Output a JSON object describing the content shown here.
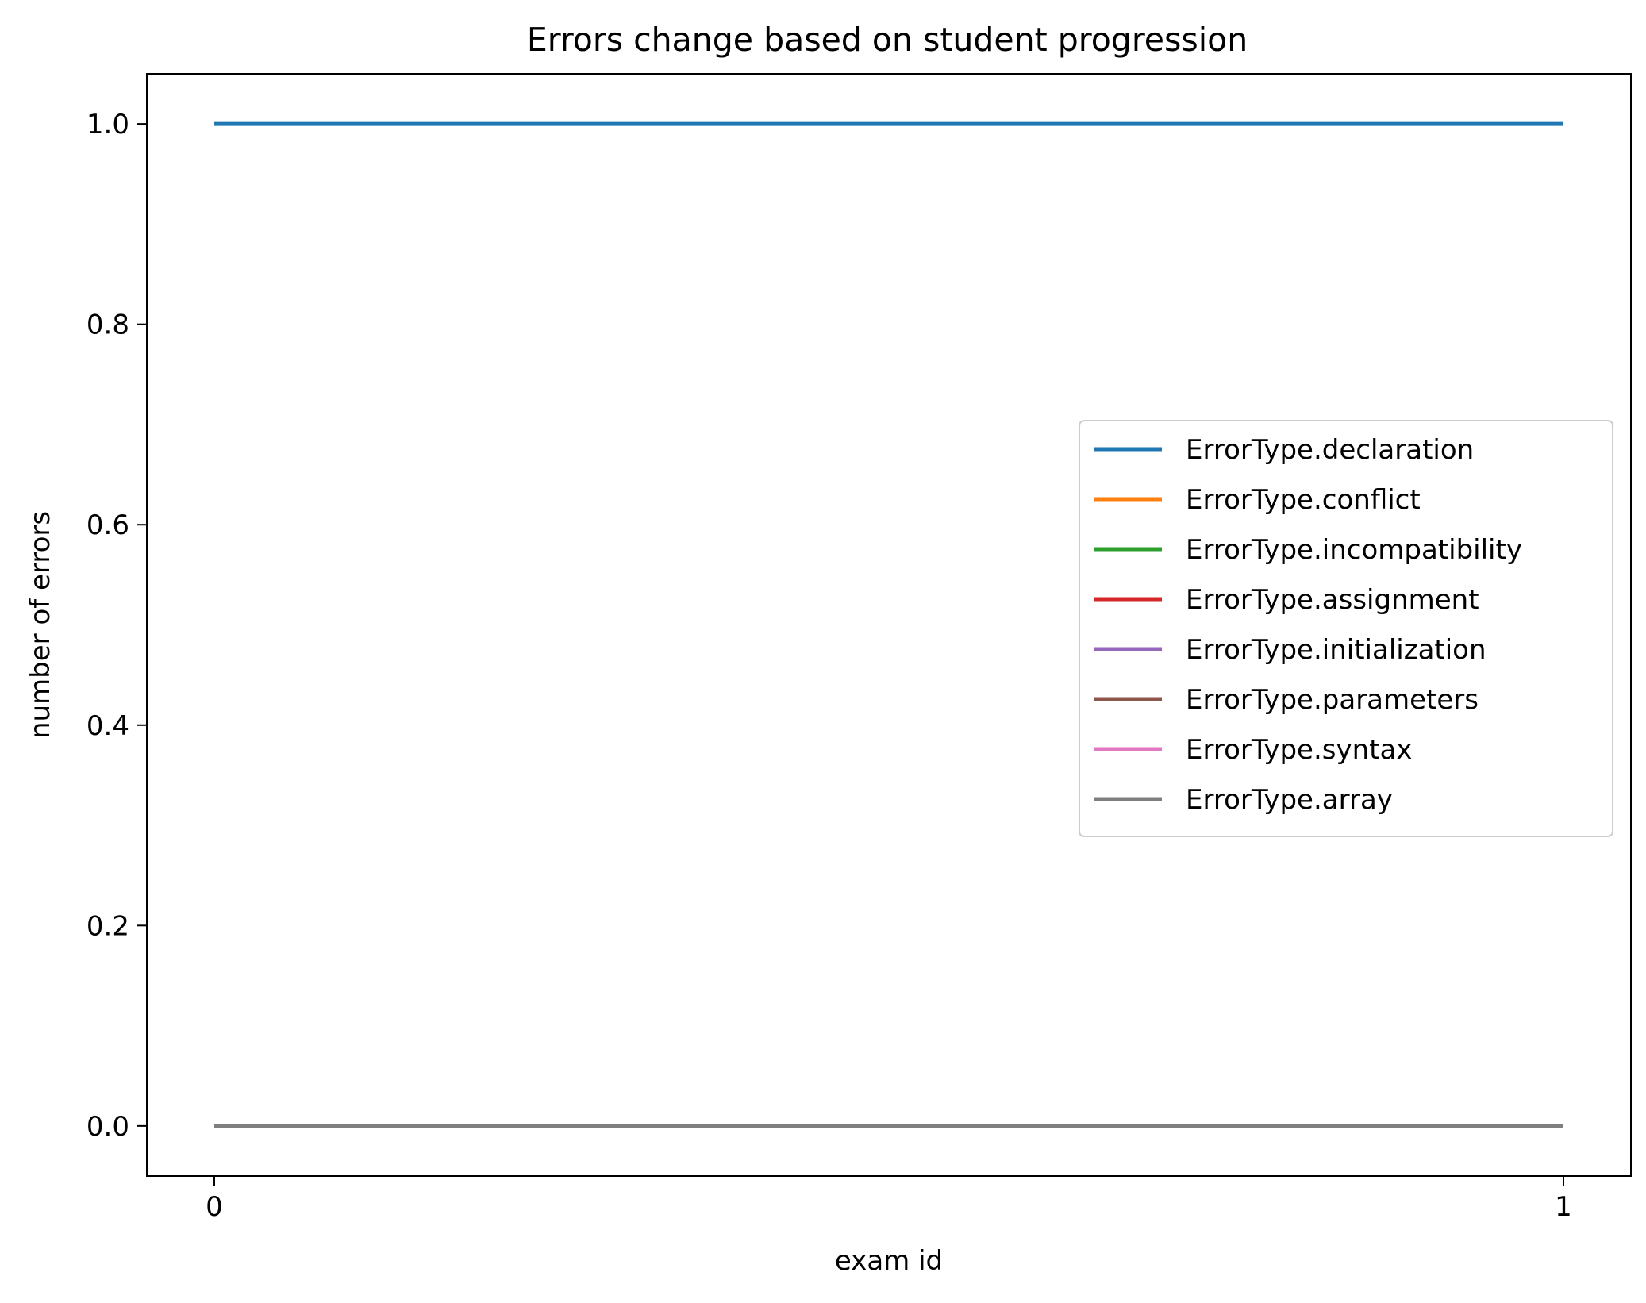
{
  "chart_data": {
    "type": "line",
    "title": "Errors change based on student progression",
    "xlabel": "exam id",
    "ylabel": "number of errors",
    "x": [
      0,
      1
    ],
    "xticks": [
      "0",
      "1"
    ],
    "xlim": [
      -0.05,
      1.05
    ],
    "yticks": [
      "0.0",
      "0.2",
      "0.4",
      "0.6",
      "0.8",
      "1.0"
    ],
    "ytick_values": [
      0.0,
      0.2,
      0.4,
      0.6,
      0.8,
      1.0
    ],
    "ylim": [
      -0.05,
      1.05
    ],
    "grid": false,
    "legend_position": "center-right",
    "series": [
      {
        "name": "ErrorType.declaration",
        "values": [
          1,
          1
        ],
        "color": "#1f77b4"
      },
      {
        "name": "ErrorType.conflict",
        "values": [
          0,
          0
        ],
        "color": "#ff7f0e"
      },
      {
        "name": "ErrorType.incompatibility",
        "values": [
          0,
          0
        ],
        "color": "#2ca02c"
      },
      {
        "name": "ErrorType.assignment",
        "values": [
          0,
          0
        ],
        "color": "#d62728"
      },
      {
        "name": "ErrorType.initialization",
        "values": [
          0,
          0
        ],
        "color": "#9467bd"
      },
      {
        "name": "ErrorType.parameters",
        "values": [
          0,
          0
        ],
        "color": "#8c564b"
      },
      {
        "name": "ErrorType.syntax",
        "values": [
          0,
          0
        ],
        "color": "#e377c2"
      },
      {
        "name": "ErrorType.array",
        "values": [
          0,
          0
        ],
        "color": "#7f7f7f"
      }
    ]
  }
}
